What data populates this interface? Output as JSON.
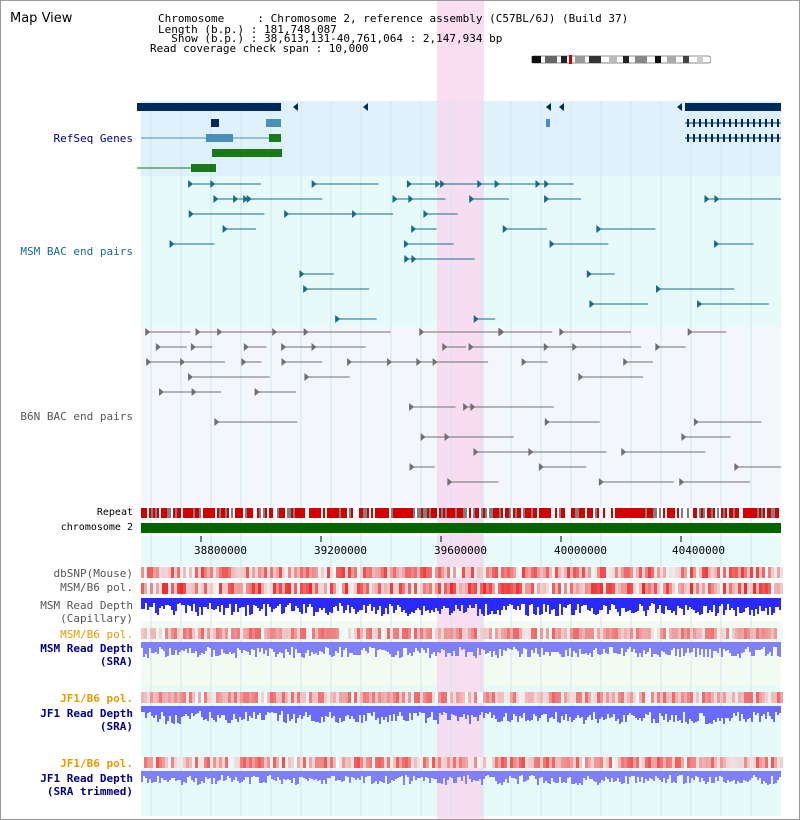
{
  "app_title": "Map View",
  "header": {
    "chromosome_line": "Chromosome     : Chromosome 2, reference assembly (C57BL/6J) (Build 37)",
    "length_line": "Length (b.p.) : 181,748,087",
    "show_line": "  Show (b.p.) : 38,613,131-40,761,064 : 2,147,934 bp",
    "coverage_line": "Read coverage check span : 10,000"
  },
  "tracks": {
    "refseq": "RefSeq Genes",
    "msm_bac": "MSM BAC end pairs",
    "b6n_bac": "B6N BAC end pairs",
    "repeat": "Repeat",
    "chromosome": "chromosome 2",
    "dbsnp": "dbSNP(Mouse)",
    "msm_b6_pol_1": "MSM/B6 pol.",
    "msm_read_depth_cap_1": "MSM Read Depth",
    "msm_read_depth_cap_2": "(Capillary)",
    "msm_b6_pol_2": "MSM/B6 pol.",
    "msm_read_depth_sra_1": "MSM Read Depth",
    "msm_read_depth_sra_2": "(SRA)",
    "jf1_b6_pol_1": "JF1/B6 pol.",
    "jf1_read_depth_sra_1": "JF1 Read Depth",
    "jf1_read_depth_sra_2": "(SRA)",
    "jf1_b6_pol_2": "JF1/B6 pol.",
    "jf1_read_depth_trim_1": "JF1 Read Depth",
    "jf1_read_depth_trim_2": "(SRA trimmed)"
  },
  "axis_ticks": [
    "38800000",
    "39200000",
    "39600000",
    "40000000",
    "40400000"
  ],
  "colors": {
    "refseq_bg": "#dff2fb",
    "msm_bg": "#e6fafa",
    "b6n_bg": "#f3f6fa",
    "highlight": "#f8d8f0",
    "gene_dark": "#002a5c",
    "gene_mid": "#4a8fb8",
    "gene_green": "#1a7a1a",
    "msm_line": "#1a6a88",
    "b6n_line": "#707070",
    "chromosome_green": "#006400",
    "depth_blue": "#2a2aff",
    "depth_light": "#8080ff",
    "pol_red": "#e02020",
    "label_navy": "#00008b",
    "label_teal": "#1a6a88",
    "label_orange": "#e89a00"
  }
}
